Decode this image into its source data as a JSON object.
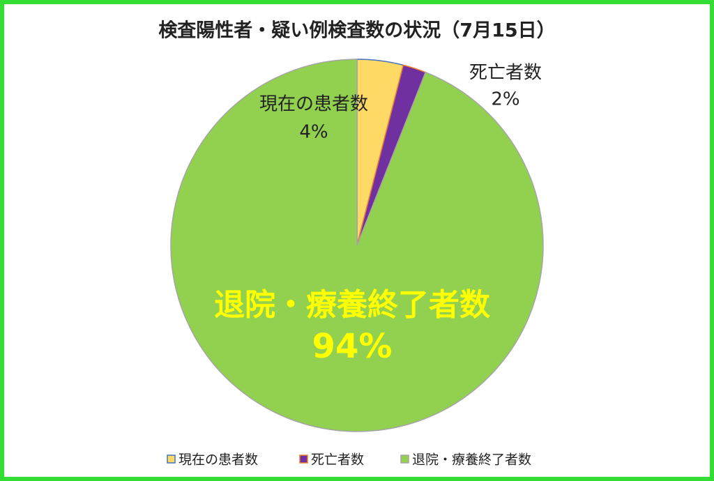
{
  "chart_data": {
    "type": "pie",
    "title": "検査陽性者・疑い例検査数の状況（7月15日）",
    "categories": [
      "現在の患者数",
      "死亡者数",
      "退院・療養終了者数"
    ],
    "values": [
      4,
      2,
      94
    ],
    "value_labels": [
      "4%",
      "2%",
      "94%"
    ],
    "colors": [
      "#ffd966",
      "#7030a0",
      "#92d050"
    ],
    "edge_colors": [
      "#4472c4",
      "#ed7d31",
      "#a5a5a5"
    ],
    "label_colors": [
      "#222222",
      "#222222",
      "#ffff00"
    ],
    "legend": "bottom"
  }
}
